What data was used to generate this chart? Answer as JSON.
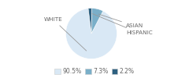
{
  "slices": [
    90.5,
    7.3,
    2.2
  ],
  "labels": [
    "WHITE",
    "ASIAN",
    "HISPANIC"
  ],
  "colors": [
    "#d9e8f5",
    "#7aafc9",
    "#2e6080"
  ],
  "legend_labels": [
    "90.5%",
    "7.3%",
    "2.2%"
  ],
  "legend_colors": [
    "#d9e8f5",
    "#7aafc9",
    "#2e6080"
  ],
  "startangle": 97,
  "label_fontsize": 5.2,
  "legend_fontsize": 5.5,
  "background_color": "#ffffff",
  "text_color": "#666666"
}
